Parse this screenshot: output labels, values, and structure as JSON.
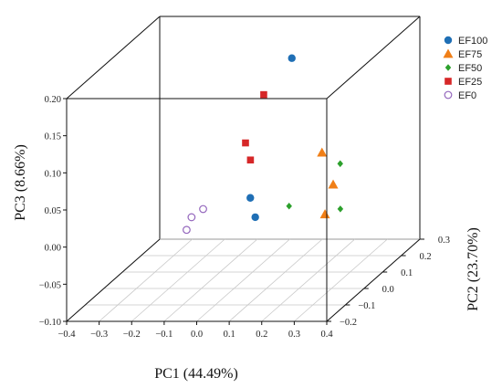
{
  "chart_data": {
    "type": "scatter",
    "projection": "3d",
    "xlabel": "PC1 (44.49%)",
    "ylabel": "PC2 (23.70%)",
    "zlabel": "PC3 (8.66%)",
    "xlim": [
      -0.4,
      0.4
    ],
    "ylim": [
      -0.25,
      0.3
    ],
    "zlim": [
      -0.1,
      0.2
    ],
    "x_ticks": [
      "−0.4",
      "−0.3",
      "−0.2",
      "−0.1",
      "0.0",
      "0.1",
      "0.2",
      "0.3",
      "0.4"
    ],
    "y_ticks": [
      "−0.2",
      "−0.1",
      "0.0",
      "0.1",
      "0.2",
      "0.3"
    ],
    "z_ticks": [
      "−0.10",
      "−0.05",
      "0.00",
      "0.05",
      "0.10",
      "0.15",
      "0.20"
    ],
    "grid": "floor",
    "legend_position": "top-right",
    "series": [
      {
        "name": "EF100",
        "marker": "circle",
        "color": "#1f6fb5",
        "points": [
          [
            0.1,
            0.12,
            0.18
          ],
          [
            0.04,
            -0.01,
            0.018
          ],
          [
            0.05,
            0.0,
            -0.01
          ]
        ]
      },
      {
        "name": "EF75",
        "marker": "triangle",
        "color": "#f07f17",
        "points": [
          [
            0.25,
            0.01,
            0.075
          ],
          [
            0.3,
            -0.02,
            0.038
          ],
          [
            0.28,
            -0.03,
            0.0
          ]
        ]
      },
      {
        "name": "EF50",
        "marker": "diamond",
        "color": "#2ca02c",
        "points": [
          [
            0.28,
            0.06,
            0.05
          ],
          [
            0.18,
            -0.05,
            0.015
          ],
          [
            0.27,
            0.08,
            -0.015
          ]
        ]
      },
      {
        "name": "EF25",
        "marker": "square",
        "color": "#d62728",
        "points": [
          [
            0.05,
            0.05,
            0.145
          ],
          [
            0.02,
            0.0,
            0.09
          ],
          [
            0.03,
            0.01,
            0.065
          ]
        ]
      },
      {
        "name": "EF0",
        "marker": "open-circle",
        "color": "#9467bd",
        "points": [
          [
            -0.12,
            -0.05,
            0.0
          ],
          [
            -0.1,
            -0.02,
            0.005
          ],
          [
            -0.13,
            -0.06,
            -0.015
          ]
        ]
      }
    ]
  }
}
